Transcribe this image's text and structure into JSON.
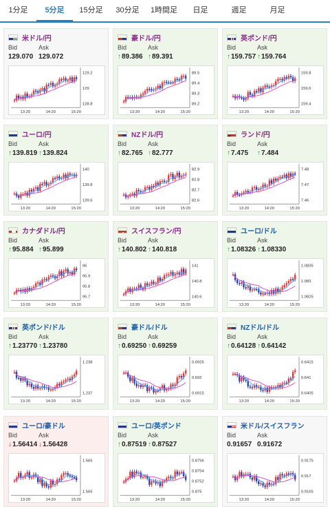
{
  "tabs": [
    {
      "label": "1分足",
      "active": false
    },
    {
      "label": "5分足",
      "active": true
    },
    {
      "label": "15分足",
      "active": false
    },
    {
      "label": "30分足",
      "active": false
    },
    {
      "label": "1時間足",
      "active": false
    },
    {
      "label": "日足",
      "active": false
    },
    {
      "label": "週足",
      "active": false
    },
    {
      "label": "月足",
      "active": false
    }
  ],
  "colors": {
    "accent": "#2a7fc1",
    "up": "#2a9a3b",
    "down": "#d53030",
    "candle_up": "#e53935",
    "candle_down": "#2c3ea8",
    "ma_fast": "#4da3ff",
    "ma_slow": "#d050d0"
  },
  "labels": {
    "bid": "Bid",
    "ask": "Ask"
  },
  "cards": [
    {
      "pair": "米ドル/円",
      "flag_icon": "us-flag-icon",
      "name_color": "purple",
      "state": "neutral",
      "bid": "129.070",
      "ask": "129.072",
      "bid_dir": "",
      "ask_dir": "",
      "ticks": [
        "129.2",
        "129",
        "128.8"
      ],
      "xticks": [
        "13:20",
        "14:20",
        "15:20"
      ],
      "trend": "up"
    },
    {
      "pair": "豪ドル/円",
      "flag_icon": "au-flag-icon",
      "name_color": "purple",
      "state": "up",
      "bid": "89.386",
      "ask": "89.391",
      "bid_dir": "up",
      "ask_dir": "up",
      "ticks": [
        "89.5",
        "89.4",
        "89.3",
        "89.2"
      ],
      "xticks": [
        "13:20",
        "14:20",
        "15:20"
      ],
      "trend": "up"
    },
    {
      "pair": "英ポンド/円",
      "flag_icon": "uk-flag-icon",
      "name_color": "purple",
      "state": "up",
      "bid": "159.757",
      "ask": "159.764",
      "bid_dir": "up",
      "ask_dir": "up",
      "ticks": [
        "159.8",
        "159.6",
        "159.4"
      ],
      "xticks": [
        "13:20",
        "14:20",
        "15:20"
      ],
      "trend": "up"
    },
    {
      "pair": "ユーロ/円",
      "flag_icon": "eu-flag-icon",
      "name_color": "purple",
      "state": "up",
      "bid": "139.819",
      "ask": "139.824",
      "bid_dir": "up",
      "ask_dir": "up",
      "ticks": [
        "140",
        "139.8",
        "139.6"
      ],
      "xticks": [
        "13:20",
        "14:20",
        "15:20"
      ],
      "trend": "up"
    },
    {
      "pair": "NZドル/円",
      "flag_icon": "nz-flag-icon",
      "name_color": "purple",
      "state": "up",
      "bid": "82.765",
      "ask": "82.777",
      "bid_dir": "up",
      "ask_dir": "up",
      "ticks": [
        "82.9",
        "82.8",
        "82.7",
        "82.6"
      ],
      "xticks": [
        "13:20",
        "14:20",
        "15:20"
      ],
      "trend": "up"
    },
    {
      "pair": "ランド/円",
      "flag_icon": "za-flag-icon",
      "name_color": "purple",
      "state": "up",
      "bid": "7.475",
      "ask": "7.484",
      "bid_dir": "up",
      "ask_dir": "up",
      "ticks": [
        "7.48",
        "7.47",
        "7.46"
      ],
      "xticks": [
        "13:20",
        "14:20",
        "15:20"
      ],
      "trend": "up"
    },
    {
      "pair": "カナダドル/円",
      "flag_icon": "ca-flag-icon",
      "name_color": "purple",
      "state": "up",
      "bid": "95.884",
      "ask": "95.899",
      "bid_dir": "up",
      "ask_dir": "up",
      "ticks": [
        "96",
        "95.9",
        "95.8",
        "95.7"
      ],
      "xticks": [
        "13:20",
        "14:20",
        "15:20"
      ],
      "trend": "up"
    },
    {
      "pair": "スイスフラン/円",
      "flag_icon": "ch-flag-icon",
      "name_color": "purple",
      "state": "up",
      "bid": "140.802",
      "ask": "140.818",
      "bid_dir": "up",
      "ask_dir": "up",
      "ticks": [
        "141",
        "140.8",
        "140.6"
      ],
      "xticks": [
        "13:20",
        "14:20",
        "15:20"
      ],
      "trend": "up"
    },
    {
      "pair": "ユーロ/ドル",
      "flag_icon": "eu-us-flag-icon",
      "name_color": "blue",
      "state": "up",
      "bid": "1.08326",
      "ask": "1.08330",
      "bid_dir": "up",
      "ask_dir": "up",
      "ticks": [
        "1.0835",
        "1.083",
        "1.0825"
      ],
      "xticks": [
        "13:20",
        "14:20",
        "15:20"
      ],
      "trend": "vdown"
    },
    {
      "pair": "英ポンド/ドル",
      "flag_icon": "uk-us-flag-icon",
      "name_color": "blue",
      "state": "up",
      "bid": "1.23770",
      "ask": "1.23780",
      "bid_dir": "up",
      "ask_dir": "up",
      "ticks": [
        "1.238",
        "1.237"
      ],
      "xticks": [
        "13:20",
        "14:20",
        "15:20"
      ],
      "trend": "vdown"
    },
    {
      "pair": "豪ドル/ドル",
      "flag_icon": "au-us-flag-icon",
      "name_color": "blue",
      "state": "up",
      "bid": "0.69250",
      "ask": "0.69259",
      "bid_dir": "up",
      "ask_dir": "up",
      "ticks": [
        "0.6925",
        "0.692",
        "0.6915"
      ],
      "xticks": [
        "13:20",
        "14:20",
        "15:20"
      ],
      "trend": "vdown"
    },
    {
      "pair": "NZドル/ドル",
      "flag_icon": "nz-us-flag-icon",
      "name_color": "blue",
      "state": "up",
      "bid": "0.64128",
      "ask": "0.64142",
      "bid_dir": "up",
      "ask_dir": "up",
      "ticks": [
        "0.6415",
        "0.641",
        "0.6405"
      ],
      "xticks": [
        "13:20",
        "14:20",
        "15:20"
      ],
      "trend": "vdown"
    },
    {
      "pair": "ユーロ/豪ドル",
      "flag_icon": "eu-au-flag-icon",
      "name_color": "blue",
      "state": "down",
      "bid": "1.56414",
      "ask": "1.56428",
      "bid_dir": "down",
      "ask_dir": "down",
      "ticks": [
        "1.565",
        "1.565"
      ],
      "xticks": [
        "13:20",
        "14:20",
        "15:20"
      ],
      "trend": "flat"
    },
    {
      "pair": "ユーロ/英ポンド",
      "flag_icon": "eu-uk-flag-icon",
      "name_color": "blue",
      "state": "up",
      "bid": "0.87519",
      "ask": "0.87527",
      "bid_dir": "up",
      "ask_dir": "up",
      "ticks": [
        "0.8756",
        "0.8754",
        "0.8752",
        "0.875"
      ],
      "xticks": [
        "13:20",
        "14:20",
        "15:20"
      ],
      "trend": "flat"
    },
    {
      "pair": "米ドル/スイスフラン",
      "flag_icon": "us-ch-flag-icon",
      "name_color": "blue",
      "state": "neutral",
      "bid": "0.91657",
      "ask": "0.91672",
      "bid_dir": "",
      "ask_dir": "",
      "ticks": [
        "0.9175",
        "0.917",
        "0.9165"
      ],
      "xticks": [
        "13:20",
        "14:20",
        "15:20"
      ],
      "trend": "flat"
    }
  ]
}
